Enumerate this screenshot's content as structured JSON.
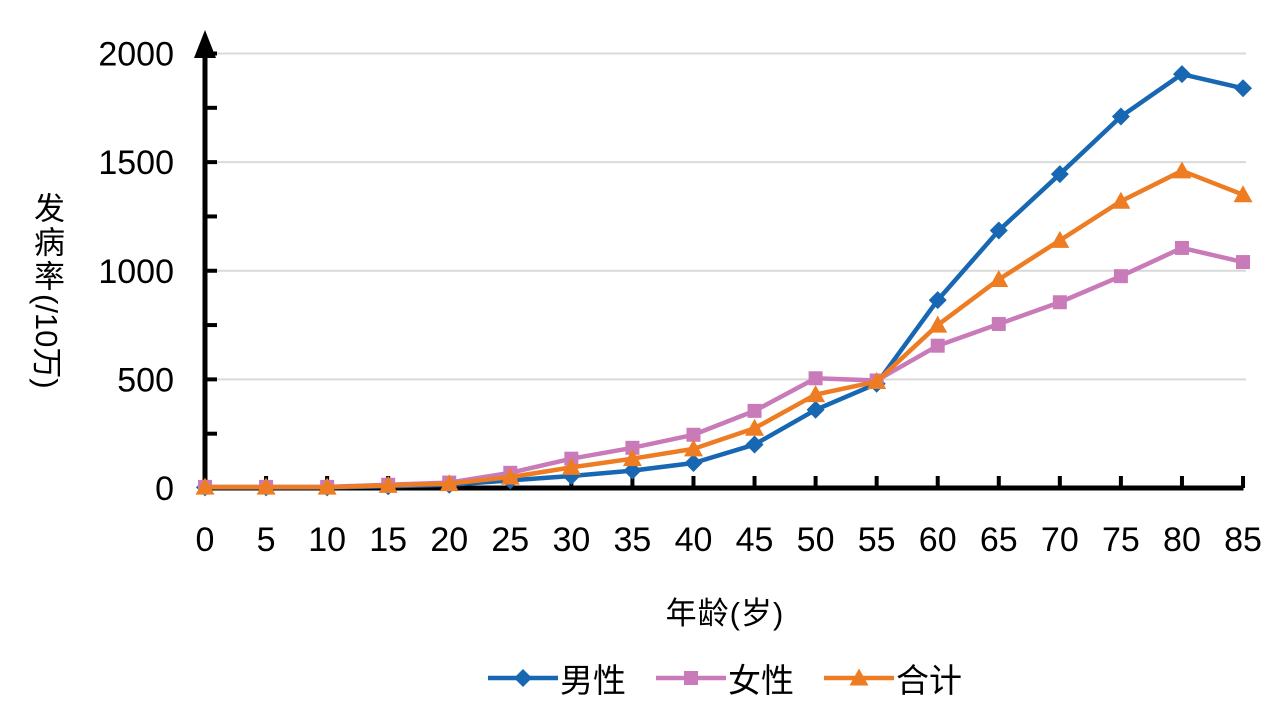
{
  "chart_data": {
    "type": "line",
    "title": "",
    "xlabel": "年龄(岁)",
    "ylabel": "发病率(/10万)",
    "x": [
      0,
      5,
      10,
      15,
      20,
      25,
      30,
      35,
      40,
      45,
      50,
      55,
      60,
      65,
      70,
      75,
      80,
      85
    ],
    "y_ticks": [
      0,
      500,
      1000,
      1500,
      2000
    ],
    "y_minor_ticks": [
      250,
      750,
      1250,
      1750
    ],
    "ylim": [
      0,
      2000
    ],
    "grid": "horizontal-only",
    "legend_position": "bottom",
    "series": [
      {
        "name": "男性",
        "marker": "diamond",
        "color": "#1767b3",
        "values": [
          3,
          3,
          3,
          8,
          15,
          35,
          55,
          80,
          115,
          200,
          360,
          480,
          865,
          1185,
          1445,
          1710,
          1905,
          1840
        ]
      },
      {
        "name": "女性",
        "marker": "square",
        "color": "#c97ab9",
        "values": [
          5,
          5,
          5,
          15,
          25,
          70,
          135,
          185,
          245,
          355,
          505,
          495,
          655,
          755,
          855,
          975,
          1105,
          1040
        ]
      },
      {
        "name": "合计",
        "marker": "triangle",
        "color": "#ee7c22",
        "values": [
          4,
          4,
          4,
          12,
          20,
          50,
          95,
          135,
          180,
          275,
          430,
          490,
          750,
          960,
          1140,
          1320,
          1460,
          1350
        ]
      }
    ]
  },
  "colors": {
    "axis": "#000000",
    "gridline": "#d9d9d9",
    "background": "#ffffff"
  }
}
